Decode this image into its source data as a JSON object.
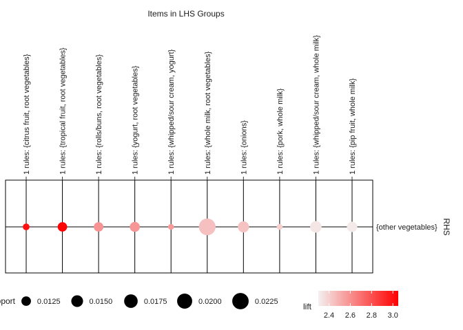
{
  "chart_data": {
    "type": "scatter",
    "title": "Items in LHS Groups",
    "x_axis_position": "top",
    "categories": [
      "1 rules: {citrus fruit, root vegetables}",
      "1 rules: {tropical fruit, root vegetables}",
      "1 rules: {rolls/buns, root vegetables}",
      "1 rules: {yogurt, root vegetables}",
      "1 rules: {whipped/sour cream, yogurt}",
      "1 rules: {whole milk, root vegetables}",
      "1 rules: {onions}",
      "1 rules: {pork, whole milk}",
      "1 rules: {whipped/sour cream, whole milk}",
      "1 rules: {pip fruit, whole milk}"
    ],
    "y_category": "{other vegetables}",
    "ylabel": "RHS",
    "points": [
      {
        "support": 0.0104,
        "lift": 3.0
      },
      {
        "support": 0.0124,
        "lift": 3.04
      },
      {
        "support": 0.0125,
        "lift": 2.59
      },
      {
        "support": 0.013,
        "lift": 2.58
      },
      {
        "support": 0.01,
        "lift": 2.57
      },
      {
        "support": 0.023,
        "lift": 2.45
      },
      {
        "support": 0.0142,
        "lift": 2.44
      },
      {
        "support": 0.01,
        "lift": 2.4
      },
      {
        "support": 0.0146,
        "lift": 2.33
      },
      {
        "support": 0.0133,
        "lift": 2.32
      }
    ],
    "size_legend": {
      "title": "support",
      "values": [
        0.0125,
        0.015,
        0.0175,
        0.02,
        0.0225
      ],
      "labels": [
        "0.0125",
        "0.0150",
        "0.0175",
        "0.0200",
        "0.0225"
      ]
    },
    "color_legend": {
      "title": "lift",
      "range": [
        2.3,
        3.05
      ],
      "ticks": [
        2.4,
        2.6,
        2.8,
        3.0
      ],
      "tick_labels": [
        "2.4",
        "2.6",
        "2.8",
        "3.0"
      ],
      "low_color": "#f3f0ef",
      "high_color": "#ff0000"
    },
    "grid": true,
    "legend_position": "bottom"
  }
}
